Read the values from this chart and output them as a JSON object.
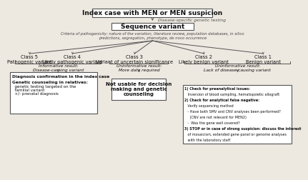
{
  "bg_color": "#ede8e0",
  "title_box": "Index case with MEN or MEN suspicion",
  "subtitle_arrow": "Disease-specific genetic testing",
  "seq_box": "Sequence variant",
  "seq_criteria": "Criteria of pathogenicity: nature of the variation, literature review, population databases, in silico\npredictions, segregation, phenotype, de novo occurrence",
  "class5_label": "Class 5\nPathogenic variant",
  "class4_label": "Class 4\nLikely pathogenic variant",
  "class3_label": "Class 3\nVariant of uncertain significance",
  "class2_label": "Class 2\nLikely benign variant",
  "class1_label": "Class 1\nBenign variant",
  "informative_label": "Informative result:\nDisease-causing variant",
  "uninformative_class3": "Uninformative result:\nMore data required",
  "uninformative_class12": "Uninformative result:\nLack of disease-causing variant",
  "box_left_title": "Diagnosis confirmation in the index case",
  "box_left_subtitle": "Genetic counseling in relatives:",
  "box_left_body": "  genetic testing targeted on the\n  familial variant\n  +/- prenatal diagnosis",
  "box_middle_text": "Not usable for decision\nmaking and genetic\ncounseling",
  "box_right_lines": [
    "1) Check for preanalytical issues:",
    "   Inversion of blood sampling, hematopoietic allograft",
    "2) Check for analytical false negative:",
    "   Verify sequencing method",
    "   - Have both SMV and CNV analyses been performed?",
    "     (CNV are not relevant for MEN2)",
    "   -  Was the gene well covered?",
    "3) STOP or in case of strong suspicion: discuss the interest",
    "   of mosaicism, extended gene panel or genome analyses",
    "   with the laboratory staff"
  ],
  "line_color": "#555555",
  "box_edge_color": "#555555",
  "text_color": "#111111"
}
